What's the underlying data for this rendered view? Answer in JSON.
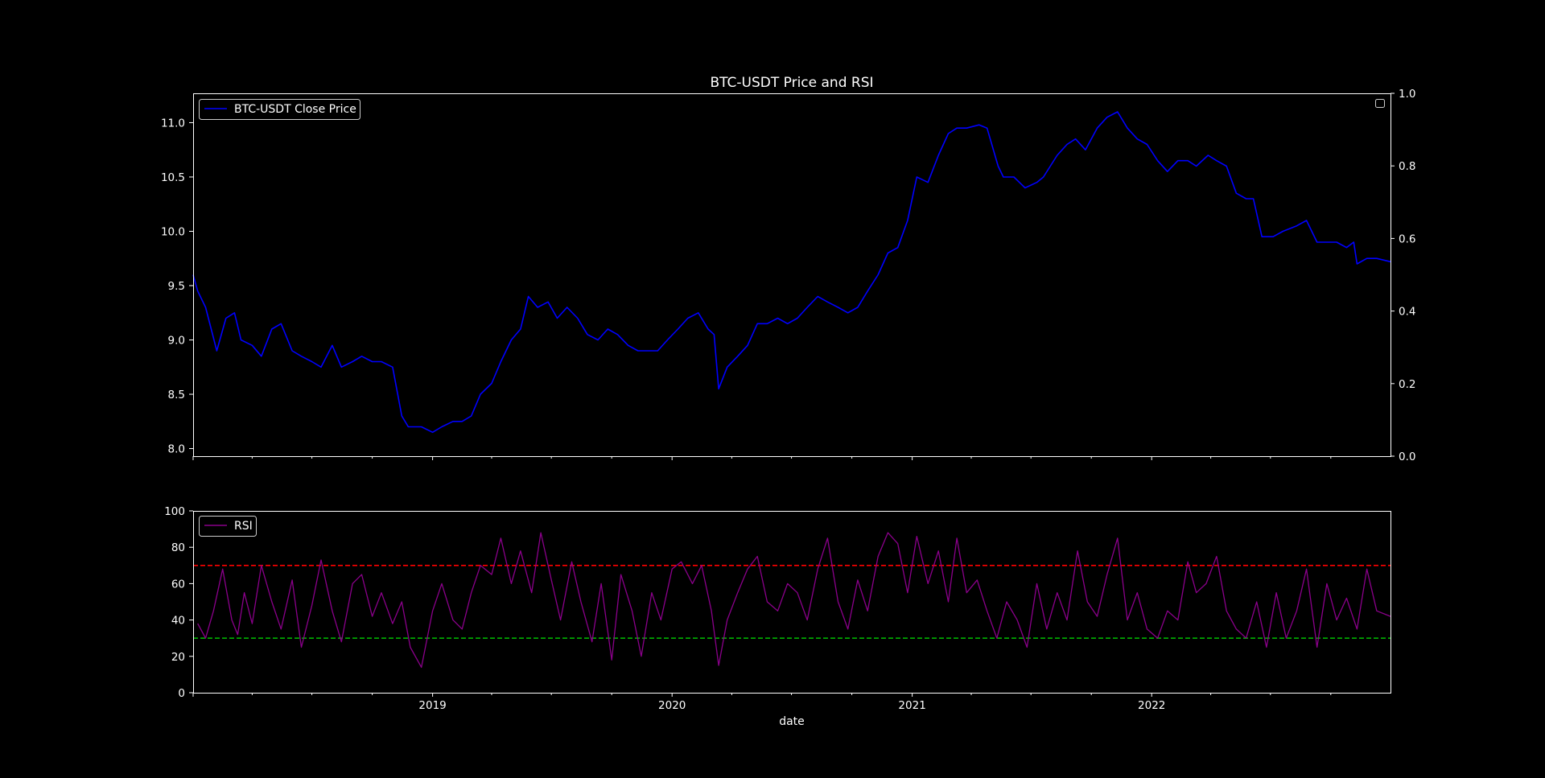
{
  "chart_data": [
    {
      "type": "line",
      "title": "BTC-USDT Price and RSI",
      "xlabel": "",
      "ylabel": "",
      "x_range": [
        "2018-01-01",
        "2022-12-31"
      ],
      "ylim": [
        7.93,
        11.27
      ],
      "y_ticks": [
        8.0,
        8.5,
        9.0,
        9.5,
        10.0,
        10.5,
        11.0
      ],
      "y_tick_labels": [
        "8.0",
        "8.5",
        "9.0",
        "9.5",
        "10.0",
        "10.5",
        "11.0"
      ],
      "secondary_y": {
        "ylim": [
          0,
          1
        ],
        "ticks": [
          0.0,
          0.2,
          0.4,
          0.6,
          0.8,
          1.0
        ],
        "tick_labels": [
          "0.0",
          "0.2",
          "0.4",
          "0.6",
          "0.8",
          "1.0"
        ],
        "legend": "empty box top-right"
      },
      "legend": "upper-left",
      "grid": false,
      "series": [
        {
          "name": "BTC-USDT Close Price",
          "color": "#0000ff",
          "x": [
            "2018-01-01",
            "2018-01-08",
            "2018-01-20",
            "2018-02-06",
            "2018-02-20",
            "2018-03-05",
            "2018-03-15",
            "2018-04-01",
            "2018-04-15",
            "2018-05-01",
            "2018-05-15",
            "2018-06-01",
            "2018-06-15",
            "2018-07-01",
            "2018-07-15",
            "2018-08-01",
            "2018-08-15",
            "2018-09-01",
            "2018-09-15",
            "2018-10-01",
            "2018-10-15",
            "2018-11-01",
            "2018-11-15",
            "2018-11-25",
            "2018-12-15",
            "2019-01-01",
            "2019-01-15",
            "2019-02-01",
            "2019-02-15",
            "2019-03-01",
            "2019-03-15",
            "2019-04-01",
            "2019-04-15",
            "2019-05-01",
            "2019-05-15",
            "2019-05-27",
            "2019-06-10",
            "2019-06-26",
            "2019-07-10",
            "2019-07-25",
            "2019-08-10",
            "2019-08-25",
            "2019-09-10",
            "2019-09-25",
            "2019-10-10",
            "2019-10-26",
            "2019-11-10",
            "2019-11-25",
            "2019-12-10",
            "2019-12-25",
            "2020-01-10",
            "2020-01-25",
            "2020-02-10",
            "2020-02-25",
            "2020-03-05",
            "2020-03-12",
            "2020-03-25",
            "2020-04-10",
            "2020-04-25",
            "2020-05-10",
            "2020-05-25",
            "2020-06-10",
            "2020-06-25",
            "2020-07-10",
            "2020-07-25",
            "2020-08-10",
            "2020-08-25",
            "2020-09-10",
            "2020-09-25",
            "2020-10-10",
            "2020-10-25",
            "2020-11-10",
            "2020-11-25",
            "2020-12-10",
            "2020-12-25",
            "2021-01-08",
            "2021-01-25",
            "2021-02-10",
            "2021-02-25",
            "2021-03-10",
            "2021-03-25",
            "2021-04-13",
            "2021-04-25",
            "2021-05-12",
            "2021-05-20",
            "2021-06-05",
            "2021-06-22",
            "2021-07-10",
            "2021-07-20",
            "2021-08-10",
            "2021-08-25",
            "2021-09-07",
            "2021-09-22",
            "2021-10-10",
            "2021-10-25",
            "2021-11-10",
            "2021-11-25",
            "2021-12-10",
            "2021-12-25",
            "2022-01-10",
            "2022-01-25",
            "2022-02-10",
            "2022-02-25",
            "2022-03-10",
            "2022-03-28",
            "2022-04-10",
            "2022-04-25",
            "2022-05-10",
            "2022-05-25",
            "2022-06-05",
            "2022-06-18",
            "2022-07-05",
            "2022-07-20",
            "2022-08-10",
            "2022-08-25",
            "2022-09-10",
            "2022-09-25",
            "2022-10-10",
            "2022-10-25",
            "2022-11-05",
            "2022-11-10",
            "2022-11-25",
            "2022-12-10",
            "2022-12-31"
          ],
          "values": [
            9.6,
            9.45,
            9.3,
            8.9,
            9.2,
            9.25,
            9.0,
            8.95,
            8.85,
            9.1,
            9.15,
            8.9,
            8.85,
            8.8,
            8.75,
            8.95,
            8.75,
            8.8,
            8.85,
            8.8,
            8.8,
            8.75,
            8.3,
            8.2,
            8.2,
            8.15,
            8.2,
            8.25,
            8.25,
            8.3,
            8.5,
            8.6,
            8.8,
            9.0,
            9.1,
            9.4,
            9.3,
            9.35,
            9.2,
            9.3,
            9.2,
            9.05,
            9.0,
            9.1,
            9.05,
            8.95,
            8.9,
            8.9,
            8.9,
            9.0,
            9.1,
            9.2,
            9.25,
            9.1,
            9.05,
            8.55,
            8.75,
            8.85,
            8.95,
            9.15,
            9.15,
            9.2,
            9.15,
            9.2,
            9.3,
            9.4,
            9.35,
            9.3,
            9.25,
            9.3,
            9.45,
            9.6,
            9.8,
            9.85,
            10.1,
            10.5,
            10.45,
            10.7,
            10.9,
            10.95,
            10.95,
            10.98,
            10.95,
            10.6,
            10.5,
            10.5,
            10.4,
            10.45,
            10.5,
            10.7,
            10.8,
            10.85,
            10.75,
            10.95,
            11.05,
            11.1,
            10.95,
            10.85,
            10.8,
            10.65,
            10.55,
            10.65,
            10.65,
            10.6,
            10.7,
            10.65,
            10.6,
            10.35,
            10.3,
            10.3,
            9.95,
            9.95,
            10.0,
            10.05,
            10.1,
            9.9,
            9.9,
            9.9,
            9.85,
            9.9,
            9.7,
            9.75,
            9.75,
            9.72
          ]
        }
      ]
    },
    {
      "type": "line",
      "title": "",
      "xlabel": "date",
      "ylabel": "",
      "x_range": [
        "2018-01-01",
        "2022-12-31"
      ],
      "x_ticks": [
        "2019-01-01",
        "2020-01-01",
        "2021-01-01",
        "2022-01-01"
      ],
      "x_tick_labels": [
        "2019",
        "2020",
        "2021",
        "2022"
      ],
      "ylim": [
        0,
        100
      ],
      "y_ticks": [
        0,
        20,
        40,
        60,
        80,
        100
      ],
      "y_tick_labels": [
        "0",
        "20",
        "40",
        "60",
        "80",
        "100"
      ],
      "legend": "upper-left",
      "grid": false,
      "reference_lines": [
        {
          "y": 70,
          "color": "#ff0000",
          "style": "dashed"
        },
        {
          "y": 30,
          "color": "#00b000",
          "style": "dashed"
        }
      ],
      "series": [
        {
          "name": "RSI",
          "color": "#8b008b",
          "x": [
            "2018-01-08",
            "2018-01-20",
            "2018-02-01",
            "2018-02-15",
            "2018-03-01",
            "2018-03-10",
            "2018-03-20",
            "2018-04-01",
            "2018-04-15",
            "2018-05-01",
            "2018-05-15",
            "2018-06-01",
            "2018-06-15",
            "2018-07-01",
            "2018-07-15",
            "2018-08-01",
            "2018-08-15",
            "2018-09-01",
            "2018-09-15",
            "2018-10-01",
            "2018-10-15",
            "2018-11-01",
            "2018-11-15",
            "2018-11-28",
            "2018-12-15",
            "2019-01-01",
            "2019-01-15",
            "2019-02-01",
            "2019-02-15",
            "2019-03-01",
            "2019-03-15",
            "2019-04-01",
            "2019-04-15",
            "2019-05-01",
            "2019-05-15",
            "2019-06-01",
            "2019-06-15",
            "2019-07-01",
            "2019-07-15",
            "2019-08-01",
            "2019-08-15",
            "2019-09-01",
            "2019-09-15",
            "2019-10-01",
            "2019-10-15",
            "2019-11-01",
            "2019-11-15",
            "2019-12-01",
            "2019-12-15",
            "2020-01-01",
            "2020-01-15",
            "2020-02-01",
            "2020-02-15",
            "2020-03-01",
            "2020-03-12",
            "2020-03-25",
            "2020-04-10",
            "2020-04-25",
            "2020-05-10",
            "2020-05-25",
            "2020-06-10",
            "2020-06-25",
            "2020-07-10",
            "2020-07-25",
            "2020-08-10",
            "2020-08-25",
            "2020-09-10",
            "2020-09-25",
            "2020-10-10",
            "2020-10-25",
            "2020-11-10",
            "2020-11-25",
            "2020-12-10",
            "2020-12-25",
            "2021-01-08",
            "2021-01-25",
            "2021-02-10",
            "2021-02-25",
            "2021-03-10",
            "2021-03-25",
            "2021-04-10",
            "2021-04-25",
            "2021-05-10",
            "2021-05-25",
            "2021-06-10",
            "2021-06-25",
            "2021-07-10",
            "2021-07-25",
            "2021-08-10",
            "2021-08-25",
            "2021-09-10",
            "2021-09-25",
            "2021-10-10",
            "2021-10-25",
            "2021-11-10",
            "2021-11-25",
            "2021-12-10",
            "2021-12-25",
            "2022-01-10",
            "2022-01-25",
            "2022-02-10",
            "2022-02-25",
            "2022-03-10",
            "2022-03-25",
            "2022-04-10",
            "2022-04-25",
            "2022-05-10",
            "2022-05-25",
            "2022-06-10",
            "2022-06-25",
            "2022-07-10",
            "2022-07-25",
            "2022-08-10",
            "2022-08-25",
            "2022-09-10",
            "2022-09-25",
            "2022-10-10",
            "2022-10-25",
            "2022-11-10",
            "2022-11-25",
            "2022-12-10",
            "2022-12-31"
          ],
          "values": [
            38,
            30,
            45,
            68,
            40,
            32,
            55,
            38,
            70,
            50,
            35,
            62,
            25,
            48,
            73,
            45,
            28,
            60,
            65,
            42,
            55,
            38,
            50,
            25,
            14,
            45,
            60,
            40,
            35,
            55,
            70,
            65,
            85,
            60,
            78,
            55,
            88,
            62,
            40,
            72,
            50,
            28,
            60,
            18,
            65,
            45,
            20,
            55,
            40,
            68,
            72,
            60,
            70,
            45,
            15,
            40,
            55,
            68,
            75,
            50,
            45,
            60,
            55,
            40,
            68,
            85,
            50,
            35,
            62,
            45,
            75,
            88,
            82,
            55,
            86,
            60,
            78,
            50,
            85,
            55,
            62,
            45,
            30,
            50,
            40,
            25,
            60,
            35,
            55,
            40,
            78,
            50,
            42,
            65,
            85,
            40,
            55,
            35,
            30,
            45,
            40,
            72,
            55,
            60,
            75,
            45,
            35,
            30,
            50,
            25,
            55,
            30,
            45,
            68,
            25,
            60,
            40,
            52,
            35,
            68,
            45,
            42
          ]
        }
      ]
    }
  ]
}
